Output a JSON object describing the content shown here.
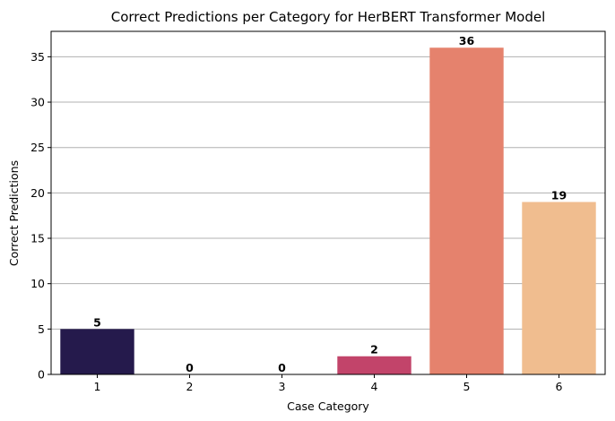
{
  "chart_data": {
    "type": "bar",
    "title": "Correct Predictions per Category for HerBERT Transformer Model",
    "xlabel": "Case Category",
    "ylabel": "Correct Predictions",
    "categories": [
      "1",
      "2",
      "3",
      "4",
      "5",
      "6"
    ],
    "values": [
      5,
      0,
      0,
      2,
      36,
      19
    ],
    "value_labels": [
      "5",
      "0",
      "0",
      "2",
      "36",
      "19"
    ],
    "bar_colors": [
      "#251a4c",
      "#4a1d6d",
      "#8a2c71",
      "#c2446a",
      "#e5826d",
      "#f0bd8f"
    ],
    "ylim": [
      0,
      37.8
    ],
    "yticks": [
      0,
      5,
      10,
      15,
      20,
      25,
      30,
      35
    ],
    "ytick_labels": [
      "0",
      "5",
      "10",
      "15",
      "20",
      "25",
      "30",
      "35"
    ],
    "grid": {
      "axis": "y",
      "color": "#b0b0b0"
    },
    "legend": "none"
  }
}
